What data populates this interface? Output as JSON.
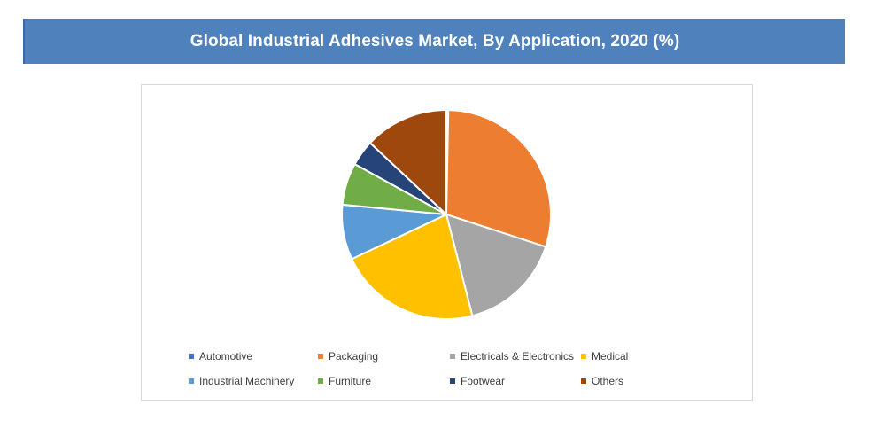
{
  "banner": {
    "title": "Global Industrial Adhesives Market, By Application, 2020 (%)"
  },
  "chart_data": {
    "type": "pie",
    "title": "",
    "start_angle_deg": 0,
    "direction": "clockwise",
    "slices": [
      {
        "label": "Automotive",
        "value": 0.3,
        "color": "#4472c4"
      },
      {
        "label": "Packaging",
        "value": 29.7,
        "color": "#ed7d31"
      },
      {
        "label": "Electricals & Electronics",
        "value": 16.0,
        "color": "#a5a5a5"
      },
      {
        "label": "Medical",
        "value": 22.0,
        "color": "#ffc000"
      },
      {
        "label": "Industrial Machinery",
        "value": 8.5,
        "color": "#5b9bd5"
      },
      {
        "label": "Furniture",
        "value": 6.5,
        "color": "#70ad47"
      },
      {
        "label": "Footwear",
        "value": 4.0,
        "color": "#264478"
      },
      {
        "label": "Others",
        "value": 13.0,
        "color": "#9e480e"
      }
    ],
    "legend_position": "bottom"
  }
}
